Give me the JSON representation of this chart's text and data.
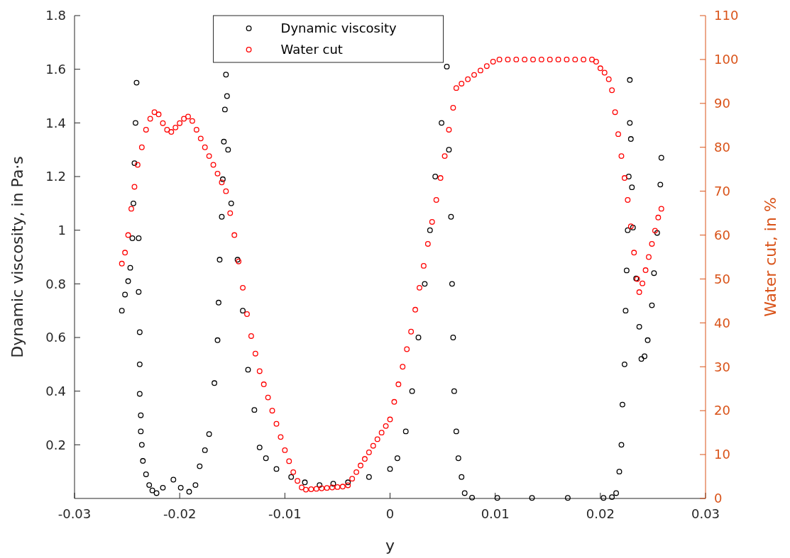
{
  "chart_data": {
    "type": "scatter",
    "xlabel": "y",
    "ylabel": "Dynamic viscosity, in Pa·s",
    "y2label": "Water cut, in %",
    "xlim": [
      -0.03,
      0.03
    ],
    "xticks": [
      -0.03,
      -0.02,
      -0.01,
      0,
      0.01,
      0.02,
      0.03
    ],
    "ylim": [
      0,
      1.8
    ],
    "yticks": [
      0.2,
      0.4,
      0.6,
      0.8,
      1,
      1.2,
      1.4,
      1.6,
      1.8
    ],
    "y2lim": [
      0,
      110
    ],
    "y2ticks": [
      0,
      10,
      20,
      30,
      40,
      50,
      60,
      70,
      80,
      90,
      100,
      110
    ],
    "grid": false,
    "legend": "top",
    "marker": "circle",
    "series": [
      {
        "name": "Dynamic viscosity",
        "color": "#000000",
        "x": [
          -0.0255,
          -0.0252,
          -0.0249,
          -0.0247,
          -0.0245,
          -0.0244,
          -0.0243,
          -0.0242,
          -0.0241,
          -0.0239,
          -0.0239,
          -0.0238,
          -0.0238,
          -0.0238,
          -0.0237,
          -0.0237,
          -0.0236,
          -0.0235,
          -0.0232,
          -0.0229,
          -0.0226,
          -0.0222,
          -0.0216,
          -0.0206,
          -0.0199,
          -0.0191,
          -0.0185,
          -0.0181,
          -0.0176,
          -0.0172,
          -0.0167,
          -0.0164,
          -0.0163,
          -0.0162,
          -0.016,
          -0.0159,
          -0.0158,
          -0.0157,
          -0.0156,
          -0.0155,
          -0.0154,
          -0.0151,
          -0.0145,
          -0.014,
          -0.0135,
          -0.0129,
          -0.0124,
          -0.0118,
          -0.0108,
          -0.0094,
          -0.0081,
          -0.0067,
          -0.0054,
          -0.004,
          -0.002,
          0,
          0.0007,
          0.0015,
          0.0021,
          0.0027,
          0.0033,
          0.0038,
          0.0043,
          0.0049,
          0.0054,
          0.0056,
          0.0058,
          0.0059,
          0.006,
          0.0061,
          0.0063,
          0.0065,
          0.0068,
          0.0071,
          0.0078,
          0.0102,
          0.0135,
          0.0169,
          0.0203,
          0.0211,
          0.0215,
          0.0218,
          0.022,
          0.0221,
          0.0223,
          0.0224,
          0.0225,
          0.0226,
          0.0227,
          0.0228,
          0.0228,
          0.0229,
          0.023,
          0.0231,
          0.0234,
          0.0237,
          0.0239,
          0.0242,
          0.0245,
          0.0249,
          0.0251,
          0.0254,
          0.0257,
          0.0258
        ],
        "values": [
          0.7,
          0.76,
          0.81,
          0.86,
          0.97,
          1.1,
          1.25,
          1.4,
          1.55,
          0.97,
          0.77,
          0.62,
          0.5,
          0.39,
          0.31,
          0.25,
          0.2,
          0.14,
          0.09,
          0.05,
          0.03,
          0.02,
          0.04,
          0.07,
          0.04,
          0.025,
          0.05,
          0.12,
          0.18,
          0.24,
          0.43,
          0.59,
          0.73,
          0.89,
          1.05,
          1.19,
          1.33,
          1.45,
          1.58,
          1.5,
          1.3,
          1.1,
          0.89,
          0.7,
          0.48,
          0.33,
          0.19,
          0.15,
          0.11,
          0.08,
          0.06,
          0.05,
          0.055,
          0.06,
          0.08,
          0.11,
          0.15,
          0.25,
          0.4,
          0.6,
          0.8,
          1,
          1.2,
          1.4,
          1.61,
          1.3,
          1.05,
          0.8,
          0.6,
          0.4,
          0.25,
          0.15,
          0.08,
          0.02,
          0.003,
          0.002,
          0.002,
          0.002,
          0.002,
          0.005,
          0.02,
          0.1,
          0.2,
          0.35,
          0.5,
          0.7,
          0.85,
          1,
          1.2,
          1.4,
          1.56,
          1.34,
          1.16,
          1.01,
          0.82,
          0.64,
          0.52,
          0.53,
          0.59,
          0.72,
          0.84,
          0.99,
          1.17,
          1.27
        ]
      },
      {
        "name": "Water cut",
        "color": "#ff0000",
        "axis": "y2",
        "x": [
          -0.0255,
          -0.0252,
          -0.0249,
          -0.0246,
          -0.0243,
          -0.024,
          -0.0236,
          -0.0232,
          -0.0228,
          -0.0224,
          -0.022,
          -0.0216,
          -0.0212,
          -0.0208,
          -0.0204,
          -0.02,
          -0.0196,
          -0.0192,
          -0.0188,
          -0.0184,
          -0.018,
          -0.0176,
          -0.0172,
          -0.0168,
          -0.0164,
          -0.016,
          -0.0156,
          -0.0152,
          -0.0148,
          -0.0144,
          -0.014,
          -0.0136,
          -0.0132,
          -0.0128,
          -0.0124,
          -0.012,
          -0.0116,
          -0.0112,
          -0.0108,
          -0.0104,
          -0.01,
          -0.0096,
          -0.0092,
          -0.0088,
          -0.0084,
          -0.008,
          -0.0075,
          -0.007,
          -0.0065,
          -0.006,
          -0.0055,
          -0.005,
          -0.0045,
          -0.004,
          -0.0036,
          -0.0032,
          -0.0028,
          -0.0024,
          -0.002,
          -0.0016,
          -0.0012,
          -0.0008,
          -0.0004,
          0,
          0.0004,
          0.0008,
          0.0012,
          0.0016,
          0.002,
          0.0024,
          0.0028,
          0.0032,
          0.0036,
          0.004,
          0.0044,
          0.0048,
          0.0052,
          0.0056,
          0.006,
          0.0063,
          0.0068,
          0.0074,
          0.008,
          0.0086,
          0.0092,
          0.0098,
          0.0104,
          0.0112,
          0.012,
          0.0128,
          0.0136,
          0.0144,
          0.0152,
          0.016,
          0.0168,
          0.0176,
          0.0184,
          0.0192,
          0.0196,
          0.02,
          0.0204,
          0.0208,
          0.0211,
          0.0214,
          0.0217,
          0.022,
          0.0223,
          0.0226,
          0.0229,
          0.0232,
          0.0235,
          0.0237,
          0.024,
          0.0243,
          0.0246,
          0.0249,
          0.0252,
          0.0255,
          0.0258
        ],
        "values": [
          53.5,
          56,
          60,
          66,
          71,
          76,
          80,
          84,
          86.5,
          88,
          87.5,
          85.5,
          84,
          83.5,
          84.5,
          85.5,
          86.5,
          87,
          86,
          84,
          82,
          80,
          78,
          76,
          74,
          72,
          70,
          65,
          60,
          54,
          48,
          42,
          37,
          33,
          29,
          26,
          23,
          20,
          17,
          14,
          11,
          8.5,
          6,
          4,
          2.5,
          2,
          2.1,
          2.2,
          2.3,
          2.4,
          2.5,
          2.6,
          2.7,
          3,
          4.5,
          6,
          7.5,
          9,
          10.5,
          12,
          13.5,
          15,
          16.5,
          18,
          22,
          26,
          30,
          34,
          38,
          43,
          48,
          53,
          58,
          63,
          68,
          73,
          78,
          84,
          89,
          93.5,
          94.5,
          95.5,
          96.5,
          97.5,
          98.5,
          99.5,
          100,
          100,
          100,
          100,
          100,
          100,
          100,
          100,
          100,
          100,
          100,
          100,
          99.5,
          98,
          97,
          95.5,
          93,
          88,
          83,
          78,
          73,
          68,
          62,
          56,
          50,
          47,
          49,
          52,
          55,
          58,
          61,
          64,
          66
        ]
      }
    ]
  }
}
